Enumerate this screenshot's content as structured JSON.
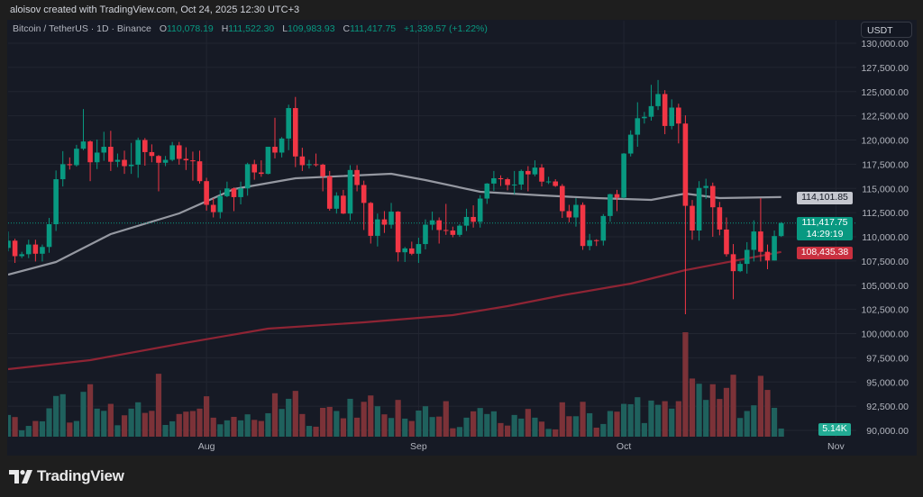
{
  "attribution": "aloisov created with TradingView.com, Oct 24, 2025 12:30 UTC+3",
  "legend": {
    "symbol": "Bitcoin / TetherUS · 1D · Binance",
    "open_label": "O",
    "open": "110,078.19",
    "high_label": "H",
    "high": "111,522.30",
    "low_label": "L",
    "low": "109,983.93",
    "close_label": "C",
    "close": "111,417.75",
    "change": "+1,339.57 (+1.22%)"
  },
  "price_axis": {
    "currency": "USDT",
    "ma50_tag": "114,101.85",
    "last_price_tag": "111,417.75",
    "countdown": "14:29:19",
    "ma200_tag": "108,435.38",
    "volume_tag": "5.14K"
  },
  "branding": {
    "logo_text": "TradingView"
  },
  "colors": {
    "up": "#089981",
    "down": "#f23645",
    "vol_up": "#1f615d",
    "vol_down": "#7c3238",
    "ma50": "#9598a1",
    "ma200": "#8e2434",
    "background": "#161a25",
    "grid": "#222631"
  },
  "chart_data": {
    "type": "candlestick",
    "title": "Bitcoin / TetherUS · 1D · Binance",
    "ylim": [
      88000,
      132000
    ],
    "yticks": [
      130000,
      127500,
      125000,
      122500,
      120000,
      117500,
      115000,
      112500,
      110000,
      107500,
      105000,
      102500,
      100000,
      97500,
      95000,
      92500,
      90000
    ],
    "ytick_labels": [
      "130,000.00",
      "127,500.00",
      "125,000.00",
      "122,500.00",
      "120,000.00",
      "117,500.00",
      "115,000.00",
      "112,500.00",
      "110,000.00",
      "107,500.00",
      "105,000.00",
      "102,500.00",
      "100,000.00",
      "97,500.00",
      "95,000.00",
      "92,500.00",
      "90,000.00"
    ],
    "xticks": [
      {
        "label": "Aug",
        "index": 29
      },
      {
        "label": "Sep",
        "index": 60
      },
      {
        "label": "Oct",
        "index": 90
      },
      {
        "label": "Nov",
        "index": 121
      }
    ],
    "grid": true,
    "volume_unit": "K",
    "fields": [
      "open",
      "high",
      "low",
      "close",
      "volume"
    ],
    "candles": [
      [
        108850,
        110550,
        108500,
        109600,
        13.7
      ],
      [
        109600,
        109800,
        107300,
        108000,
        12.4
      ],
      [
        108000,
        108450,
        107800,
        108200,
        4.0
      ],
      [
        108200,
        109700,
        107800,
        109200,
        6.8
      ],
      [
        109200,
        109700,
        107450,
        108250,
        9.9
      ],
      [
        108250,
        109200,
        107450,
        108950,
        9.7
      ],
      [
        108950,
        111950,
        108350,
        111300,
        17.9
      ],
      [
        111300,
        116850,
        110600,
        115950,
        25.7
      ],
      [
        115950,
        118850,
        115200,
        117500,
        26.8
      ],
      [
        117500,
        118200,
        116950,
        117400,
        8.9
      ],
      [
        117400,
        119500,
        117250,
        119100,
        9.9
      ],
      [
        119100,
        123200,
        118950,
        119850,
        28.3
      ],
      [
        119850,
        119950,
        115750,
        117700,
        33.1
      ],
      [
        117700,
        120050,
        117000,
        118700,
        17.7
      ],
      [
        118700,
        120850,
        117850,
        119300,
        16.3
      ],
      [
        119300,
        120950,
        116800,
        117750,
        20.7
      ],
      [
        117750,
        118600,
        117200,
        117950,
        7.2
      ],
      [
        117950,
        118900,
        116500,
        117300,
        13.5
      ],
      [
        117300,
        119700,
        116500,
        117450,
        17.7
      ],
      [
        117450,
        120250,
        116100,
        120000,
        21.7
      ],
      [
        120000,
        120200,
        117350,
        118750,
        15.0
      ],
      [
        118750,
        119550,
        117700,
        118350,
        16.3
      ],
      [
        118350,
        118450,
        114700,
        117650,
        39.7
      ],
      [
        117650,
        118350,
        117300,
        117950,
        7.4
      ],
      [
        117950,
        119800,
        117800,
        119450,
        9.7
      ],
      [
        119450,
        119800,
        117450,
        118050,
        14.3
      ],
      [
        118050,
        119250,
        116900,
        117900,
        15.8
      ],
      [
        117900,
        118800,
        115800,
        117800,
        16.2
      ],
      [
        117800,
        118900,
        115500,
        115750,
        17.7
      ],
      [
        115750,
        116100,
        112700,
        113300,
        25.5
      ],
      [
        113300,
        114000,
        112000,
        112550,
        12.0
      ],
      [
        112550,
        114800,
        111900,
        114200,
        7.8
      ],
      [
        114200,
        115700,
        114100,
        115000,
        10.3
      ],
      [
        115000,
        115100,
        112650,
        114100,
        12.5
      ],
      [
        114100,
        115700,
        113350,
        115000,
        10.3
      ],
      [
        115000,
        117650,
        114250,
        117500,
        14.1
      ],
      [
        117500,
        117950,
        115900,
        116650,
        10.6
      ],
      [
        116650,
        117900,
        116200,
        116500,
        9.9
      ],
      [
        116500,
        119300,
        116450,
        119300,
        14.8
      ],
      [
        119300,
        122300,
        118100,
        118700,
        27.4
      ],
      [
        118700,
        120300,
        118200,
        120150,
        17.5
      ],
      [
        120150,
        123650,
        118950,
        123300,
        23.9
      ],
      [
        123300,
        124450,
        117200,
        118300,
        28.9
      ],
      [
        118300,
        119200,
        116800,
        117400,
        14.3
      ],
      [
        117400,
        117950,
        117050,
        117500,
        6.8
      ],
      [
        117500,
        118600,
        117250,
        117450,
        6.3
      ],
      [
        117450,
        117550,
        114700,
        116250,
        18.2
      ],
      [
        116250,
        116800,
        112700,
        112900,
        18.8
      ],
      [
        112900,
        114600,
        112400,
        114250,
        16.2
      ],
      [
        114250,
        114850,
        112350,
        112400,
        11.6
      ],
      [
        112400,
        117400,
        111700,
        116900,
        23.9
      ],
      [
        116900,
        117400,
        114700,
        115350,
        12.0
      ],
      [
        115350,
        115800,
        110700,
        113500,
        22.0
      ],
      [
        113500,
        113600,
        109300,
        110100,
        26.0
      ],
      [
        110100,
        112400,
        109000,
        111800,
        19.2
      ],
      [
        111800,
        112650,
        110400,
        111250,
        14.1
      ],
      [
        111250,
        113500,
        110850,
        112600,
        11.8
      ],
      [
        112600,
        112650,
        107450,
        108400,
        23.2
      ],
      [
        108400,
        108950,
        107400,
        108800,
        11.4
      ],
      [
        108800,
        109500,
        108100,
        108250,
        9.9
      ],
      [
        108250,
        109900,
        107300,
        109250,
        16.5
      ],
      [
        109250,
        111800,
        108700,
        111250,
        19.2
      ],
      [
        111250,
        112600,
        110700,
        111700,
        12.4
      ],
      [
        111700,
        112000,
        109300,
        110700,
        12.7
      ],
      [
        110700,
        113400,
        110200,
        110650,
        22.4
      ],
      [
        110650,
        111050,
        109950,
        110200,
        5.3
      ],
      [
        110200,
        111300,
        110000,
        111150,
        6.1
      ],
      [
        111150,
        112900,
        110600,
        112050,
        12.0
      ],
      [
        112050,
        113250,
        110950,
        111550,
        16.0
      ],
      [
        111550,
        114300,
        110950,
        113950,
        18.1
      ],
      [
        113950,
        115550,
        113400,
        115500,
        14.3
      ],
      [
        115500,
        116800,
        114750,
        116050,
        16.0
      ],
      [
        116050,
        116350,
        115250,
        115950,
        8.6
      ],
      [
        115950,
        116100,
        114800,
        115350,
        7.0
      ],
      [
        115350,
        116800,
        114400,
        115400,
        13.7
      ],
      [
        115400,
        116950,
        114850,
        116800,
        11.4
      ],
      [
        116800,
        117300,
        114700,
        116450,
        17.5
      ],
      [
        116450,
        117900,
        116250,
        117150,
        12.0
      ],
      [
        117150,
        117500,
        115200,
        115700,
        9.5
      ],
      [
        115700,
        116200,
        115450,
        115720,
        4.9
      ],
      [
        115720,
        115950,
        115150,
        115250,
        4.6
      ],
      [
        115250,
        115450,
        111950,
        112650,
        21.7
      ],
      [
        112650,
        113300,
        111500,
        112000,
        12.9
      ],
      [
        112000,
        114000,
        111050,
        113300,
        12.9
      ],
      [
        113300,
        113550,
        108650,
        109050,
        22.0
      ],
      [
        109050,
        110300,
        108600,
        109650,
        14.8
      ],
      [
        109650,
        109750,
        109050,
        109600,
        5.7
      ],
      [
        109600,
        112350,
        109100,
        112150,
        8.0
      ],
      [
        112150,
        114450,
        111550,
        114400,
        16.2
      ],
      [
        114400,
        114850,
        112650,
        114050,
        15.8
      ],
      [
        114050,
        118650,
        113950,
        118600,
        20.7
      ],
      [
        118600,
        121000,
        118300,
        120550,
        20.5
      ],
      [
        120550,
        123900,
        119300,
        122250,
        24.9
      ],
      [
        122250,
        122900,
        121700,
        122400,
        8.6
      ],
      [
        122400,
        125700,
        122000,
        123500,
        22.8
      ],
      [
        123500,
        126200,
        123100,
        124750,
        20.1
      ],
      [
        124750,
        125150,
        120600,
        121450,
        22.4
      ],
      [
        121450,
        124200,
        121100,
        123350,
        17.7
      ],
      [
        123350,
        123750,
        119650,
        121700,
        22.4
      ],
      [
        121700,
        122550,
        102000,
        113200,
        65.9
      ],
      [
        113200,
        113800,
        109700,
        110650,
        36.7
      ],
      [
        110650,
        115750,
        109600,
        115050,
        33.4
      ],
      [
        115050,
        116000,
        113900,
        115250,
        23.2
      ],
      [
        115250,
        115600,
        110000,
        113050,
        33.1
      ],
      [
        113050,
        113600,
        110150,
        110750,
        23.8
      ],
      [
        110750,
        112000,
        107950,
        108200,
        30.8
      ],
      [
        108200,
        109250,
        103550,
        106450,
        39.1
      ],
      [
        106450,
        107450,
        106350,
        107200,
        11.8
      ],
      [
        107200,
        109450,
        106200,
        108650,
        16.2
      ],
      [
        108650,
        111700,
        107450,
        110550,
        19.8
      ],
      [
        110550,
        114000,
        107450,
        108450,
        38.4
      ],
      [
        108450,
        109200,
        106650,
        107550,
        29.5
      ],
      [
        107550,
        110650,
        107550,
        110078.19,
        18.2
      ],
      [
        110078.19,
        111522.3,
        109983.93,
        111417.75,
        5.14
      ]
    ],
    "moving_averages": [
      {
        "name": "MA 50",
        "color_key": "ma50",
        "last": 114101.85,
        "points": [
          [
            0,
            106093
          ],
          [
            7,
            107395
          ],
          [
            15,
            110279
          ],
          [
            25,
            112419
          ],
          [
            33,
            114930
          ],
          [
            42,
            116047
          ],
          [
            56,
            116512
          ],
          [
            61,
            115860
          ],
          [
            69,
            114651
          ],
          [
            78,
            114279
          ],
          [
            86,
            114000
          ],
          [
            94,
            113814
          ],
          [
            99,
            114465
          ],
          [
            104,
            114000
          ],
          [
            113,
            114101.85
          ]
        ]
      },
      {
        "name": "MA 200",
        "color_key": "ma200",
        "last": 108435.38,
        "points": [
          [
            0,
            96326
          ],
          [
            12,
            97256
          ],
          [
            25,
            98930
          ],
          [
            38,
            100512
          ],
          [
            52,
            101163
          ],
          [
            65,
            101907
          ],
          [
            73,
            102837
          ],
          [
            81,
            103953
          ],
          [
            91,
            105163
          ],
          [
            99,
            106558
          ],
          [
            113,
            108435.38
          ]
        ]
      }
    ]
  }
}
